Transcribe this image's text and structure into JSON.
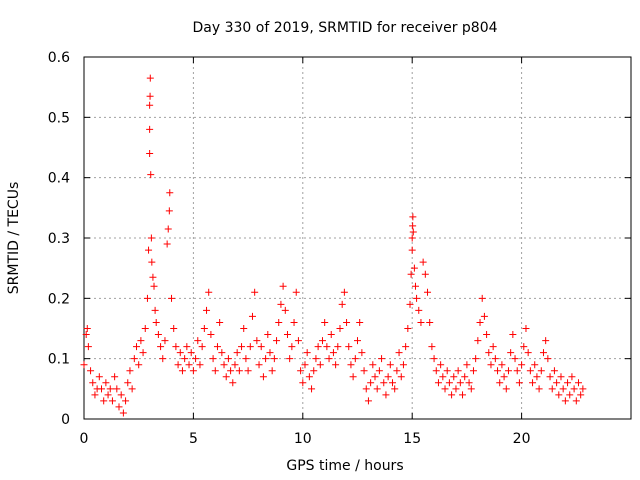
{
  "chart_data": {
    "type": "scatter",
    "title": "Day 330 of 2019, SRMTID for receiver p804",
    "xlabel": "GPS time / hours",
    "ylabel": "SRMTID / TECUs",
    "xlim": [
      0,
      25
    ],
    "ylim": [
      0,
      0.6
    ],
    "xticks": [
      0,
      5,
      10,
      15,
      20
    ],
    "yticks": [
      0,
      0.1,
      0.2,
      0.3,
      0.4,
      0.5,
      0.6
    ],
    "xtick_labels": [
      "0",
      "5",
      "10",
      "15",
      "20"
    ],
    "ytick_labels": [
      "0",
      "0.1",
      "0.2",
      "0.3",
      "0.4",
      "0.5",
      "0.6"
    ],
    "grid": true,
    "marker": "+",
    "series": [
      {
        "name": "SRMTID",
        "color": "#ff0000",
        "points": [
          [
            0.0,
            0.09
          ],
          [
            0.1,
            0.14
          ],
          [
            0.15,
            0.15
          ],
          [
            0.2,
            0.12
          ],
          [
            0.3,
            0.08
          ],
          [
            0.4,
            0.06
          ],
          [
            0.5,
            0.04
          ],
          [
            0.6,
            0.05
          ],
          [
            0.7,
            0.07
          ],
          [
            0.8,
            0.05
          ],
          [
            0.9,
            0.03
          ],
          [
            1.0,
            0.06
          ],
          [
            1.1,
            0.04
          ],
          [
            1.2,
            0.05
          ],
          [
            1.3,
            0.03
          ],
          [
            1.4,
            0.07
          ],
          [
            1.5,
            0.05
          ],
          [
            1.6,
            0.02
          ],
          [
            1.7,
            0.04
          ],
          [
            1.8,
            0.01
          ],
          [
            1.9,
            0.03
          ],
          [
            2.0,
            0.06
          ],
          [
            2.1,
            0.08
          ],
          [
            2.2,
            0.05
          ],
          [
            2.3,
            0.1
          ],
          [
            2.4,
            0.12
          ],
          [
            2.5,
            0.09
          ],
          [
            2.6,
            0.13
          ],
          [
            2.7,
            0.11
          ],
          [
            2.8,
            0.15
          ],
          [
            2.9,
            0.2
          ],
          [
            2.95,
            0.28
          ],
          [
            3.0,
            0.44
          ],
          [
            3.0,
            0.48
          ],
          [
            3.0,
            0.52
          ],
          [
            3.02,
            0.535
          ],
          [
            3.03,
            0.565
          ],
          [
            3.05,
            0.405
          ],
          [
            3.08,
            0.3
          ],
          [
            3.1,
            0.26
          ],
          [
            3.15,
            0.235
          ],
          [
            3.2,
            0.22
          ],
          [
            3.25,
            0.18
          ],
          [
            3.3,
            0.16
          ],
          [
            3.4,
            0.14
          ],
          [
            3.5,
            0.12
          ],
          [
            3.6,
            0.1
          ],
          [
            3.7,
            0.13
          ],
          [
            3.8,
            0.29
          ],
          [
            3.85,
            0.315
          ],
          [
            3.9,
            0.345
          ],
          [
            3.92,
            0.375
          ],
          [
            4.0,
            0.2
          ],
          [
            4.1,
            0.15
          ],
          [
            4.2,
            0.12
          ],
          [
            4.3,
            0.09
          ],
          [
            4.4,
            0.11
          ],
          [
            4.5,
            0.08
          ],
          [
            4.6,
            0.1
          ],
          [
            4.7,
            0.12
          ],
          [
            4.8,
            0.09
          ],
          [
            4.9,
            0.11
          ],
          [
            5.0,
            0.08
          ],
          [
            5.1,
            0.1
          ],
          [
            5.2,
            0.13
          ],
          [
            5.3,
            0.09
          ],
          [
            5.4,
            0.12
          ],
          [
            5.5,
            0.15
          ],
          [
            5.6,
            0.18
          ],
          [
            5.7,
            0.21
          ],
          [
            5.8,
            0.14
          ],
          [
            5.9,
            0.1
          ],
          [
            6.0,
            0.08
          ],
          [
            6.1,
            0.12
          ],
          [
            6.2,
            0.16
          ],
          [
            6.3,
            0.11
          ],
          [
            6.4,
            0.09
          ],
          [
            6.5,
            0.07
          ],
          [
            6.6,
            0.1
          ],
          [
            6.7,
            0.08
          ],
          [
            6.8,
            0.06
          ],
          [
            6.9,
            0.09
          ],
          [
            7.0,
            0.11
          ],
          [
            7.1,
            0.08
          ],
          [
            7.2,
            0.12
          ],
          [
            7.3,
            0.15
          ],
          [
            7.4,
            0.1
          ],
          [
            7.5,
            0.08
          ],
          [
            7.6,
            0.12
          ],
          [
            7.7,
            0.17
          ],
          [
            7.8,
            0.21
          ],
          [
            7.9,
            0.13
          ],
          [
            8.0,
            0.09
          ],
          [
            8.1,
            0.12
          ],
          [
            8.2,
            0.07
          ],
          [
            8.3,
            0.1
          ],
          [
            8.4,
            0.14
          ],
          [
            8.5,
            0.11
          ],
          [
            8.6,
            0.08
          ],
          [
            8.7,
            0.1
          ],
          [
            8.8,
            0.13
          ],
          [
            8.9,
            0.16
          ],
          [
            9.0,
            0.19
          ],
          [
            9.1,
            0.22
          ],
          [
            9.2,
            0.18
          ],
          [
            9.3,
            0.14
          ],
          [
            9.4,
            0.1
          ],
          [
            9.5,
            0.12
          ],
          [
            9.6,
            0.16
          ],
          [
            9.7,
            0.21
          ],
          [
            9.8,
            0.13
          ],
          [
            9.9,
            0.08
          ],
          [
            10.0,
            0.06
          ],
          [
            10.1,
            0.09
          ],
          [
            10.2,
            0.11
          ],
          [
            10.3,
            0.07
          ],
          [
            10.4,
            0.05
          ],
          [
            10.5,
            0.08
          ],
          [
            10.6,
            0.1
          ],
          [
            10.7,
            0.12
          ],
          [
            10.8,
            0.09
          ],
          [
            10.9,
            0.13
          ],
          [
            11.0,
            0.16
          ],
          [
            11.1,
            0.12
          ],
          [
            11.2,
            0.1
          ],
          [
            11.3,
            0.14
          ],
          [
            11.4,
            0.11
          ],
          [
            11.5,
            0.09
          ],
          [
            11.6,
            0.12
          ],
          [
            11.7,
            0.15
          ],
          [
            11.8,
            0.19
          ],
          [
            11.9,
            0.21
          ],
          [
            12.0,
            0.16
          ],
          [
            12.1,
            0.12
          ],
          [
            12.2,
            0.09
          ],
          [
            12.3,
            0.07
          ],
          [
            12.4,
            0.1
          ],
          [
            12.5,
            0.13
          ],
          [
            12.6,
            0.16
          ],
          [
            12.7,
            0.11
          ],
          [
            12.8,
            0.08
          ],
          [
            12.9,
            0.05
          ],
          [
            13.0,
            0.03
          ],
          [
            13.1,
            0.06
          ],
          [
            13.2,
            0.09
          ],
          [
            13.3,
            0.07
          ],
          [
            13.4,
            0.05
          ],
          [
            13.5,
            0.08
          ],
          [
            13.6,
            0.1
          ],
          [
            13.7,
            0.06
          ],
          [
            13.8,
            0.04
          ],
          [
            13.9,
            0.07
          ],
          [
            14.0,
            0.09
          ],
          [
            14.1,
            0.06
          ],
          [
            14.2,
            0.05
          ],
          [
            14.3,
            0.08
          ],
          [
            14.4,
            0.11
          ],
          [
            14.5,
            0.07
          ],
          [
            14.6,
            0.09
          ],
          [
            14.7,
            0.12
          ],
          [
            14.8,
            0.15
          ],
          [
            14.9,
            0.19
          ],
          [
            14.95,
            0.24
          ],
          [
            15.0,
            0.28
          ],
          [
            15.0,
            0.3
          ],
          [
            15.02,
            0.32
          ],
          [
            15.03,
            0.335
          ],
          [
            15.05,
            0.31
          ],
          [
            15.1,
            0.25
          ],
          [
            15.15,
            0.22
          ],
          [
            15.2,
            0.2
          ],
          [
            15.3,
            0.18
          ],
          [
            15.4,
            0.16
          ],
          [
            15.5,
            0.26
          ],
          [
            15.6,
            0.24
          ],
          [
            15.7,
            0.21
          ],
          [
            15.8,
            0.16
          ],
          [
            15.9,
            0.12
          ],
          [
            16.0,
            0.1
          ],
          [
            16.1,
            0.08
          ],
          [
            16.2,
            0.06
          ],
          [
            16.3,
            0.09
          ],
          [
            16.4,
            0.07
          ],
          [
            16.5,
            0.05
          ],
          [
            16.6,
            0.08
          ],
          [
            16.7,
            0.06
          ],
          [
            16.8,
            0.04
          ],
          [
            16.9,
            0.07
          ],
          [
            17.0,
            0.05
          ],
          [
            17.1,
            0.08
          ],
          [
            17.2,
            0.06
          ],
          [
            17.3,
            0.04
          ],
          [
            17.4,
            0.07
          ],
          [
            17.5,
            0.09
          ],
          [
            17.6,
            0.06
          ],
          [
            17.7,
            0.05
          ],
          [
            17.8,
            0.08
          ],
          [
            17.9,
            0.1
          ],
          [
            18.0,
            0.13
          ],
          [
            18.1,
            0.16
          ],
          [
            18.2,
            0.2
          ],
          [
            18.3,
            0.17
          ],
          [
            18.4,
            0.14
          ],
          [
            18.5,
            0.11
          ],
          [
            18.6,
            0.09
          ],
          [
            18.7,
            0.12
          ],
          [
            18.8,
            0.1
          ],
          [
            18.9,
            0.08
          ],
          [
            19.0,
            0.06
          ],
          [
            19.1,
            0.09
          ],
          [
            19.2,
            0.07
          ],
          [
            19.3,
            0.05
          ],
          [
            19.4,
            0.08
          ],
          [
            19.5,
            0.11
          ],
          [
            19.6,
            0.14
          ],
          [
            19.7,
            0.1
          ],
          [
            19.8,
            0.08
          ],
          [
            19.9,
            0.06
          ],
          [
            20.0,
            0.09
          ],
          [
            20.1,
            0.12
          ],
          [
            20.2,
            0.15
          ],
          [
            20.3,
            0.11
          ],
          [
            20.4,
            0.08
          ],
          [
            20.5,
            0.06
          ],
          [
            20.6,
            0.09
          ],
          [
            20.7,
            0.07
          ],
          [
            20.8,
            0.05
          ],
          [
            20.9,
            0.08
          ],
          [
            21.0,
            0.11
          ],
          [
            21.1,
            0.13
          ],
          [
            21.2,
            0.1
          ],
          [
            21.3,
            0.07
          ],
          [
            21.4,
            0.05
          ],
          [
            21.5,
            0.08
          ],
          [
            21.6,
            0.06
          ],
          [
            21.7,
            0.04
          ],
          [
            21.8,
            0.07
          ],
          [
            21.9,
            0.05
          ],
          [
            22.0,
            0.03
          ],
          [
            22.1,
            0.06
          ],
          [
            22.2,
            0.04
          ],
          [
            22.3,
            0.07
          ],
          [
            22.4,
            0.05
          ],
          [
            22.5,
            0.03
          ],
          [
            22.6,
            0.06
          ],
          [
            22.7,
            0.04
          ],
          [
            22.8,
            0.05
          ]
        ]
      }
    ]
  }
}
